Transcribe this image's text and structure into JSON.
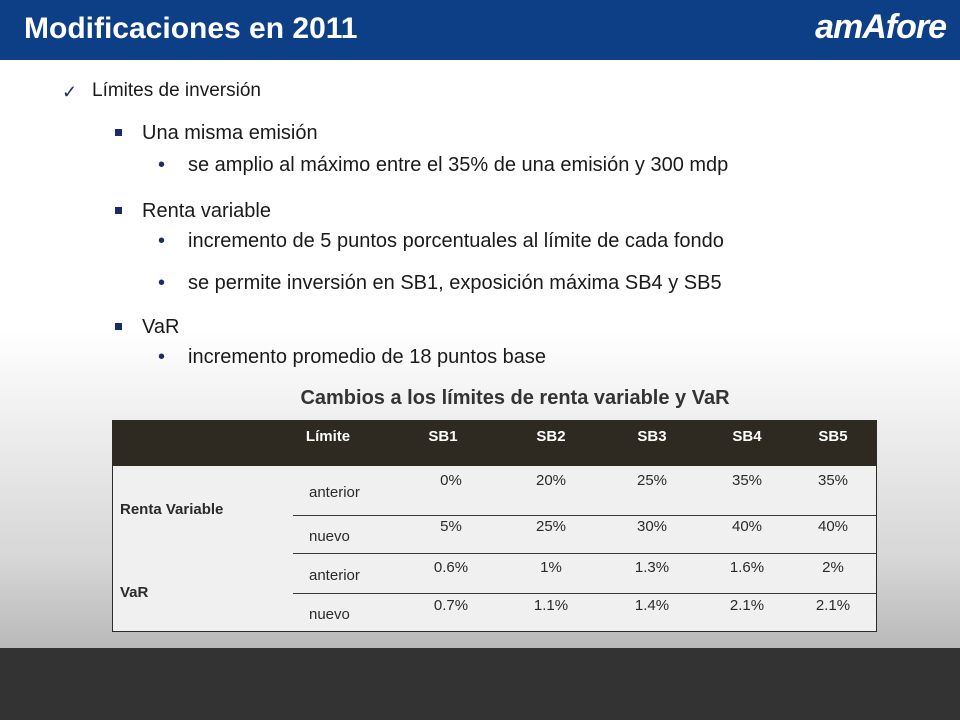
{
  "header": {
    "title": "Modificaciones en 2011",
    "logo_text": "amAfore",
    "bg_color": "#0d3f87"
  },
  "content": {
    "level1": "Límites de inversión",
    "sections": [
      {
        "label": "Una misma emisión",
        "bullets": [
          "se amplio al máximo entre el 35% de una emisión y 300 mdp"
        ]
      },
      {
        "label": "Renta variable",
        "bullets": [
          "incremento de 5 puntos porcentuales al límite de cada fondo",
          "se permite inversión en SB1, exposición máxima SB4 y SB5"
        ]
      },
      {
        "label": "VaR",
        "bullets": [
          "incremento promedio de 18 puntos base"
        ]
      }
    ]
  },
  "table": {
    "caption": "Cambios a los límites de renta variable y VaR",
    "headers": [
      "Límite",
      "SB1",
      "SB2",
      "SB3",
      "SB4",
      "SB5"
    ],
    "groups": [
      {
        "label": "Renta Variable",
        "rows": [
          {
            "sub": "anterior",
            "values": [
              "0%",
              "20%",
              "25%",
              "35%",
              "35%"
            ]
          },
          {
            "sub": "nuevo",
            "values": [
              "5%",
              "25%",
              "30%",
              "40%",
              "40%"
            ]
          }
        ]
      },
      {
        "label": "VaR",
        "rows": [
          {
            "sub": "anterior",
            "values": [
              "0.6%",
              "1%",
              "1.3%",
              "1.6%",
              "2%"
            ]
          },
          {
            "sub": "nuevo",
            "values": [
              "0.7%",
              "1.1%",
              "1.4%",
              "2.1%",
              "2.1%"
            ]
          }
        ]
      }
    ]
  }
}
